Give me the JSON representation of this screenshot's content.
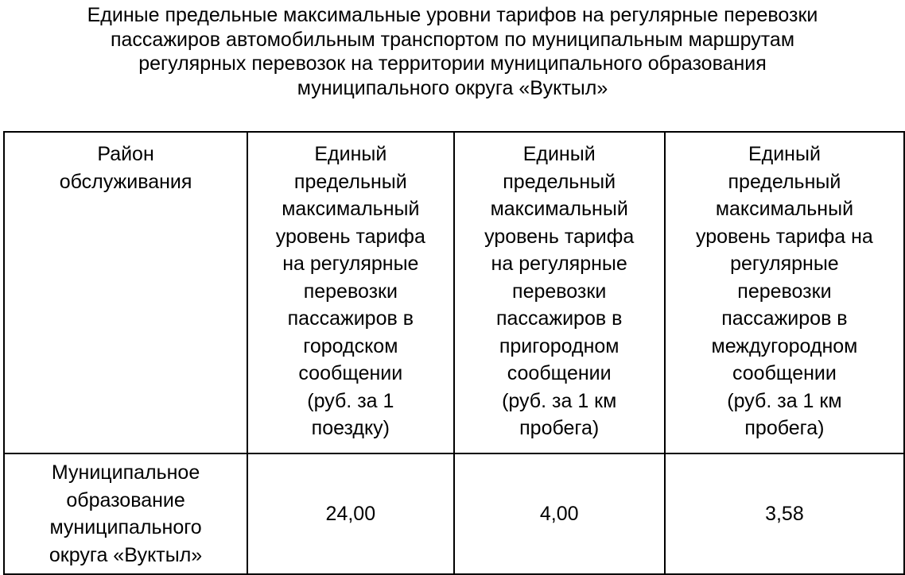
{
  "title": "Единые предельные максимальные уровни тарифов на регулярные перевозки\nпассажиров автомобильным транспортом по муниципальным маршрутам\nрегулярных перевозок на территории муниципального образования\nмуниципального округа «Вуктыл»",
  "table": {
    "headers": [
      "Район\nобслуживания",
      "Единый\nпредельный\nмаксимальный\nуровень тарифа\nна регулярные\nперевозки\nпассажиров в\nгородском\nсообщении\n(руб. за 1\nпоездку)",
      "Единый\nпредельный\nмаксимальный\nуровень тарифа\nна регулярные\nперевозки\nпассажиров в\nпригородном\nсообщении\n(руб. за 1 км\nпробега)",
      "Единый\nпредельный\nмаксимальный\nуровень тарифа на\nрегулярные\nперевозки\nпассажиров в\nмеждугородном\nсообщении\n(руб. за 1 км\nпробега)"
    ],
    "rows": [
      [
        "Муниципальное\nобразование\nмуниципального\nокруга «Вуктыл»",
        "24,00",
        "4,00",
        "3,58"
      ]
    ]
  }
}
